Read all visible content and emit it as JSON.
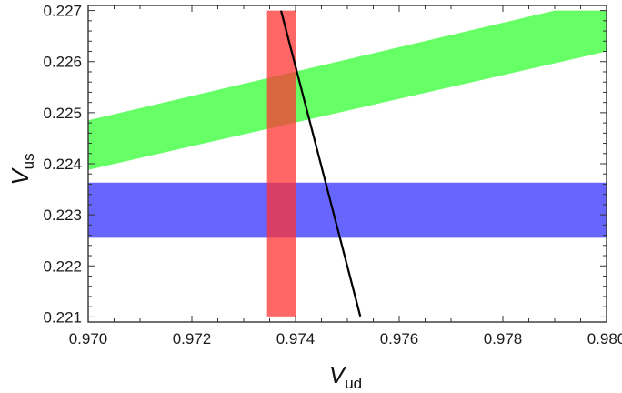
{
  "chart_data": {
    "type": "area",
    "title": "",
    "xlabel": {
      "main": "V",
      "sub": "ud"
    },
    "ylabel": {
      "main": "V",
      "sub": "us"
    },
    "xlim": [
      0.97,
      0.98
    ],
    "ylim": [
      0.2209,
      0.2271
    ],
    "xticks": [
      {
        "value": 0.97,
        "label": "0.970"
      },
      {
        "value": 0.972,
        "label": "0.972"
      },
      {
        "value": 0.974,
        "label": "0.974"
      },
      {
        "value": 0.976,
        "label": "0.976"
      },
      {
        "value": 0.978,
        "label": "0.978"
      },
      {
        "value": 0.98,
        "label": "0.980"
      }
    ],
    "yticks": [
      {
        "value": 0.221,
        "label": "0.221"
      },
      {
        "value": 0.222,
        "label": "0.222"
      },
      {
        "value": 0.223,
        "label": "0.223"
      },
      {
        "value": 0.224,
        "label": "0.224"
      },
      {
        "value": 0.225,
        "label": "0.225"
      },
      {
        "value": 0.226,
        "label": "0.226"
      },
      {
        "value": 0.227,
        "label": "0.227"
      }
    ],
    "grid": false,
    "legend": "none",
    "series": [
      {
        "kind": "diagonal-band",
        "color": "#33ff33",
        "opacity": 0.75,
        "points": [
          [
            0.97,
            0.22485
          ],
          [
            0.979,
            0.227
          ],
          [
            0.98,
            0.227
          ],
          [
            0.98,
            0.2262
          ],
          [
            0.97,
            0.22388
          ]
        ]
      },
      {
        "kind": "horizontal-band",
        "color": "#3333ff",
        "opacity": 0.75,
        "x_range": [
          0.97,
          0.98
        ],
        "y_range": [
          0.22255,
          0.22363
        ]
      },
      {
        "kind": "vertical-band",
        "color": "#ff3333",
        "opacity": 0.75,
        "x_range": [
          0.97345,
          0.974
        ],
        "y_range": [
          0.22101,
          0.227
        ]
      },
      {
        "kind": "line",
        "color": "#000000",
        "points": [
          [
            0.97372,
            0.227
          ],
          [
            0.97525,
            0.22101
          ]
        ]
      }
    ]
  }
}
